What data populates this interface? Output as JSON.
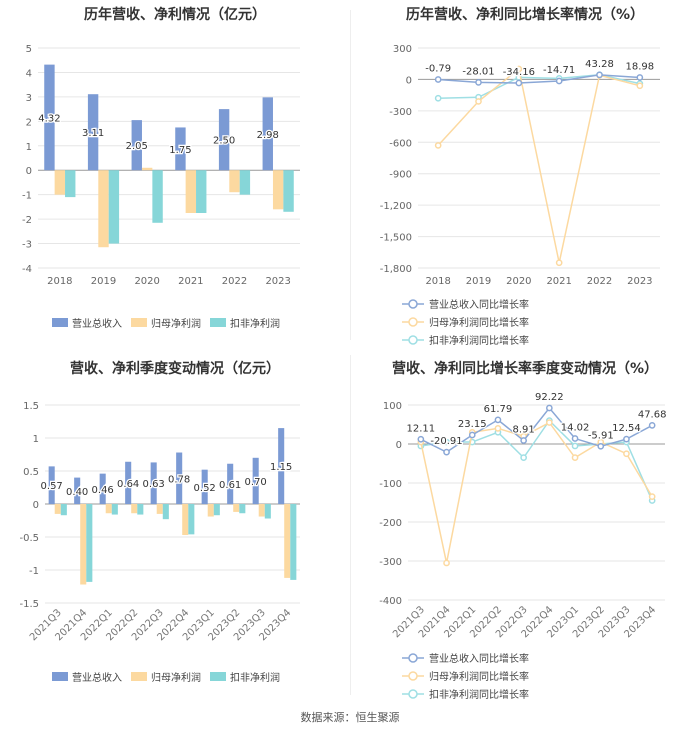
{
  "footer": "数据来源：恒生聚源",
  "colors": {
    "revenue": "#7b9ad4",
    "netprofit": "#fcd9a0",
    "deducted": "#86d6d8",
    "line1": "#8aa7d6",
    "line2": "#fcd9a0",
    "line3": "#9fdfe4"
  },
  "chart_data": [
    {
      "type": "bar",
      "title": "历年营收、净利情况（亿元）",
      "categories": [
        "2018",
        "2019",
        "2020",
        "2021",
        "2022",
        "2023"
      ],
      "ylim": [
        -4,
        5
      ],
      "yticks": [
        -4,
        -3,
        -2,
        -1,
        0,
        1,
        2,
        3,
        4,
        5
      ],
      "series": [
        {
          "name": "营业总收入",
          "values": [
            4.32,
            3.11,
            2.05,
            1.75,
            2.5,
            2.98
          ]
        },
        {
          "name": "归母净利润",
          "values": [
            -1.0,
            -3.15,
            0.1,
            -1.75,
            -0.9,
            -1.6
          ]
        },
        {
          "name": "扣非净利润",
          "values": [
            -1.1,
            -3.0,
            -2.15,
            -1.75,
            -1.0,
            -1.7
          ]
        }
      ],
      "data_labels": [
        "4.32",
        "3.11",
        "2.05",
        "1.75",
        "2.50",
        "2.98"
      ],
      "legend": [
        "营业总收入",
        "归母净利润",
        "扣非净利润"
      ]
    },
    {
      "type": "line",
      "title": "历年营收、净利同比增长率情况（%）",
      "categories": [
        "2018",
        "2019",
        "2020",
        "2021",
        "2022",
        "2023"
      ],
      "ylim": [
        -1800,
        300
      ],
      "yticks": [
        -1800,
        -1500,
        -1200,
        -900,
        -600,
        -300,
        0,
        300
      ],
      "ytick_labels": [
        "-1,800",
        "-1,500",
        "-1,200",
        "-900",
        "-600",
        "-300",
        "0",
        "300"
      ],
      "series": [
        {
          "name": "营业总收入同比增长率",
          "values": [
            -0.79,
            -28.01,
            -34.16,
            -14.71,
            43.28,
            18.98
          ]
        },
        {
          "name": "归母净利润同比增长率",
          "values": [
            -630,
            -210,
            100,
            -1750,
            40,
            -60
          ]
        },
        {
          "name": "扣非净利润同比增长率",
          "values": [
            -180,
            -170,
            20,
            10,
            45,
            -40
          ]
        }
      ],
      "data_labels": [
        "-0.79",
        "-28.01",
        "-34.16",
        "-14.71",
        "43.28",
        "18.98"
      ],
      "legend": [
        "营业总收入同比增长率",
        "归母净利润同比增长率",
        "扣非净利润同比增长率"
      ]
    },
    {
      "type": "bar",
      "title": "营收、净利季度变动情况（亿元）",
      "categories": [
        "2021Q3",
        "2021Q4",
        "2022Q1",
        "2022Q2",
        "2022Q3",
        "2022Q4",
        "2023Q1",
        "2023Q2",
        "2023Q3",
        "2023Q4"
      ],
      "ylim": [
        -1.5,
        1.5
      ],
      "yticks": [
        -1.5,
        -1,
        -0.5,
        0,
        0.5,
        1,
        1.5
      ],
      "ytick_labels": [
        "-1.5",
        "-1",
        "-0.5",
        "0",
        "0.5",
        "1",
        "1.5"
      ],
      "series": [
        {
          "name": "营业总收入",
          "values": [
            0.57,
            0.4,
            0.46,
            0.64,
            0.63,
            0.78,
            0.52,
            0.61,
            0.7,
            1.15
          ]
        },
        {
          "name": "归母净利润",
          "values": [
            -0.15,
            -1.22,
            -0.14,
            -0.14,
            -0.15,
            -0.47,
            -0.19,
            -0.12,
            -0.19,
            -1.12
          ]
        },
        {
          "name": "扣非净利润",
          "values": [
            -0.17,
            -1.18,
            -0.16,
            -0.16,
            -0.23,
            -0.46,
            -0.17,
            -0.14,
            -0.22,
            -1.15
          ]
        }
      ],
      "data_labels": [
        "0.57",
        "0.40",
        "0.46",
        "0.64",
        "0.63",
        "0.78",
        "0.52",
        "0.61",
        "0.70",
        "1.15"
      ],
      "legend": [
        "营业总收入",
        "归母净利润",
        "扣非净利润"
      ]
    },
    {
      "type": "line",
      "title": "营收、净利同比增长率季度变动情况（%）",
      "categories": [
        "2021Q3",
        "2021Q4",
        "2022Q1",
        "2022Q2",
        "2022Q3",
        "2022Q4",
        "2023Q1",
        "2023Q2",
        "2023Q3",
        "2023Q4"
      ],
      "ylim": [
        -400,
        100
      ],
      "yticks": [
        -400,
        -300,
        -200,
        -100,
        0,
        100
      ],
      "ytick_labels": [
        "-400",
        "-300",
        "-200",
        "-100",
        "0",
        "100"
      ],
      "series": [
        {
          "name": "营业总收入同比增长率",
          "values": [
            12.11,
            -20.91,
            23.15,
            61.79,
            8.91,
            92.22,
            14.02,
            -5.91,
            12.54,
            47.68
          ]
        },
        {
          "name": "归母净利润同比增长率",
          "values": [
            5,
            -305,
            30,
            40,
            20,
            55,
            -35,
            5,
            -25,
            -135
          ]
        },
        {
          "name": "扣非净利润同比增长率",
          "values": [
            -5,
            5,
            5,
            30,
            -35,
            60,
            -5,
            0,
            5,
            -145
          ]
        }
      ],
      "data_labels": [
        "12.11",
        "-20.91",
        "23.15",
        "61.79",
        "8.91",
        "92.22",
        "14.02",
        "-5.91",
        "12.54",
        "47.68"
      ],
      "legend": [
        "营业总收入同比增长率",
        "归母净利润同比增长率",
        "扣非净利润同比增长率"
      ]
    }
  ]
}
